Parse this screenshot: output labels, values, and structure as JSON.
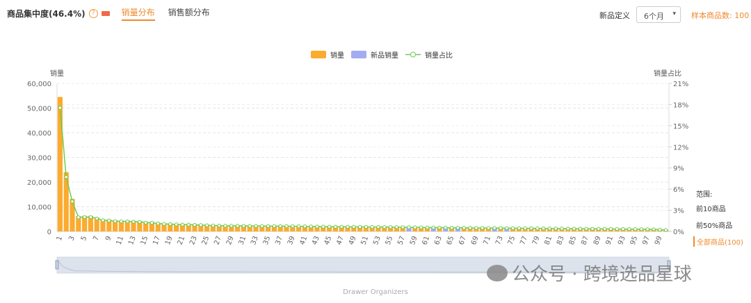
{
  "header": {
    "title": "商品集中度(46.4%)",
    "help_icon": "?",
    "tabs": [
      {
        "label": "销量分布",
        "active": true
      },
      {
        "label": "销售额分布",
        "active": false
      }
    ],
    "new_def_label": "新品定义",
    "new_def_value": "6个月",
    "sample_count": "样本商品数: 100"
  },
  "range": {
    "title": "范围:",
    "options": [
      "前10商品",
      "前50%商品",
      "全部商品(100)"
    ],
    "selected": 2
  },
  "category": "Drawer Organizers",
  "watermark": "公众号 · 跨境选品星球",
  "colors": {
    "sales": "#fbab2f",
    "new_sales": "#a3abf2",
    "share": "#6ccb53",
    "accent": "#f0892a"
  },
  "chart_data": {
    "type": "bar",
    "legend": [
      "销量",
      "新品销量",
      "销量占比"
    ],
    "legend_position": "top",
    "ylabel": "销量",
    "ylabel_right": "销量占比",
    "ylim": [
      0,
      60000
    ],
    "ylim_right": [
      0,
      21
    ],
    "yticks": [
      "0",
      "10,000",
      "20,000",
      "30,000",
      "40,000",
      "50,000",
      "60,000"
    ],
    "yticks_right": [
      "0%",
      "3%",
      "6%",
      "9%",
      "12%",
      "15%",
      "18%",
      "21%"
    ],
    "grid": true,
    "categories_start": 1,
    "categories_end": 100,
    "values": [
      54500,
      24000,
      13200,
      6200,
      6300,
      6300,
      5700,
      4900,
      4800,
      4500,
      4400,
      4400,
      4300,
      4200,
      3900,
      3800,
      3500,
      3300,
      3200,
      3100,
      3000,
      3000,
      2900,
      2800,
      2700,
      2600,
      2550,
      2500,
      2480,
      2460,
      2440,
      2420,
      2400,
      2380,
      2360,
      2340,
      2320,
      2300,
      2280,
      2260,
      2240,
      2200,
      2160,
      2120,
      2100,
      2080,
      2060,
      2040,
      2020,
      2000,
      1980,
      1960,
      1940,
      1920,
      1900,
      1880,
      1860,
      1840,
      1800,
      1760,
      1720,
      1700,
      1680,
      1650,
      1620,
      1600,
      1580,
      1560,
      1540,
      1520,
      1500,
      1480,
      1460,
      1440,
      1420,
      1400,
      1380,
      1360,
      1340,
      1320,
      1300,
      1280,
      1260,
      1240,
      1220,
      1200,
      1180,
      1160,
      1140,
      1120,
      1100,
      1080,
      1050,
      1020,
      1000,
      980,
      950,
      900,
      800,
      600
    ],
    "new_product_ranks": [
      58,
      62,
      64,
      66,
      72,
      74
    ]
  }
}
